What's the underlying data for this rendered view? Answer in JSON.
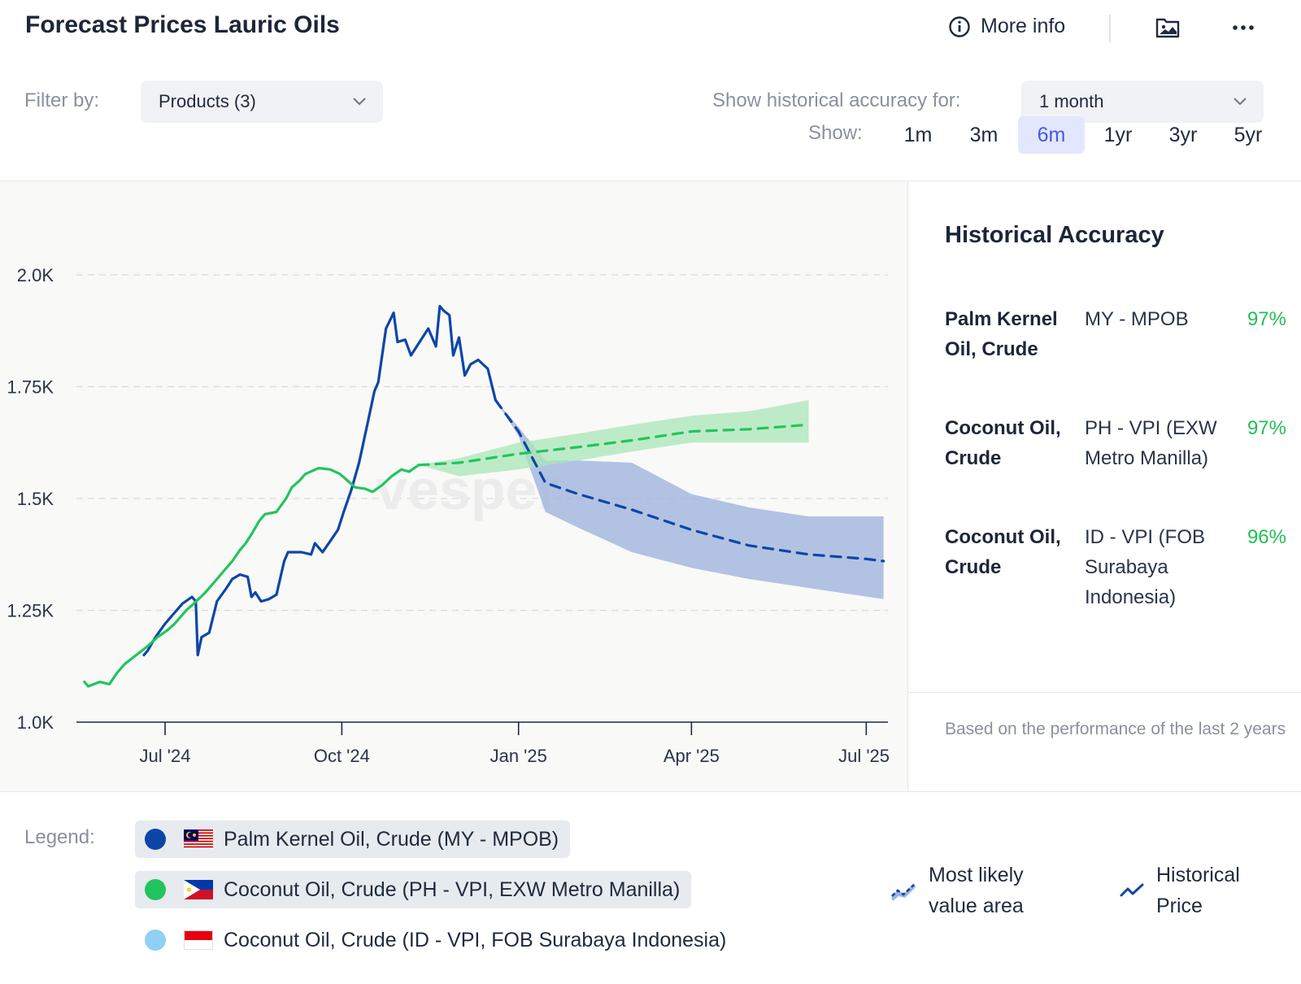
{
  "header": {
    "title": "Forecast Prices Lauric Oils",
    "more_info": "More info",
    "info_icon": "info-circle-icon",
    "image_icon": "image-download-icon",
    "menu_icon": "more-dots-icon"
  },
  "filters": {
    "filter_label": "Filter by:",
    "products_value": "Products (3)",
    "accuracy_label": "Show historical accuracy for:",
    "accuracy_value": "1 month",
    "show_label": "Show:",
    "ranges": [
      "1m",
      "3m",
      "6m",
      "1yr",
      "3yr",
      "5yr"
    ],
    "active_range": "6m"
  },
  "chart_data": {
    "type": "line",
    "y_ticks": [
      "1.0K",
      "1.25K",
      "1.5K",
      "1.75K",
      "2.0K"
    ],
    "x_ticks": [
      "Jul '24",
      "Oct '24",
      "Jan '25",
      "Apr '25",
      "Jul '25"
    ],
    "ylim": [
      1000,
      2000
    ],
    "xlim": [
      "2024-05-15",
      "2025-07-15"
    ],
    "grid": true,
    "watermark": "vesper",
    "series": [
      {
        "color": "#0d46a8",
        "historical": [
          [
            "2024-06-20",
            1150
          ],
          [
            "2024-06-22",
            1160
          ],
          [
            "2024-06-26",
            1190
          ],
          [
            "2024-07-01",
            1220
          ],
          [
            "2024-07-05",
            1240
          ],
          [
            "2024-07-10",
            1265
          ],
          [
            "2024-07-15",
            1280
          ],
          [
            "2024-07-17",
            1270
          ],
          [
            "2024-07-18",
            1150
          ],
          [
            "2024-07-20",
            1190
          ],
          [
            "2024-07-24",
            1200
          ],
          [
            "2024-07-28",
            1270
          ],
          [
            "2024-08-02",
            1300
          ],
          [
            "2024-08-05",
            1320
          ],
          [
            "2024-08-09",
            1330
          ],
          [
            "2024-08-13",
            1325
          ],
          [
            "2024-08-15",
            1280
          ],
          [
            "2024-08-17",
            1290
          ],
          [
            "2024-08-20",
            1270
          ],
          [
            "2024-08-24",
            1275
          ],
          [
            "2024-08-28",
            1285
          ],
          [
            "2024-09-01",
            1360
          ],
          [
            "2024-09-03",
            1380
          ],
          [
            "2024-09-10",
            1380
          ],
          [
            "2024-09-15",
            1375
          ],
          [
            "2024-09-17",
            1400
          ],
          [
            "2024-09-21",
            1380
          ],
          [
            "2024-09-25",
            1405
          ],
          [
            "2024-09-29",
            1430
          ],
          [
            "2024-10-02",
            1470
          ],
          [
            "2024-10-06",
            1520
          ],
          [
            "2024-10-10",
            1580
          ],
          [
            "2024-10-14",
            1660
          ],
          [
            "2024-10-18",
            1740
          ],
          [
            "2024-10-20",
            1760
          ],
          [
            "2024-10-24",
            1880
          ],
          [
            "2024-10-28",
            1915
          ],
          [
            "2024-10-30",
            1850
          ],
          [
            "2024-11-03",
            1855
          ],
          [
            "2024-11-06",
            1820
          ],
          [
            "2024-11-09",
            1840
          ],
          [
            "2024-11-12",
            1860
          ],
          [
            "2024-11-15",
            1880
          ],
          [
            "2024-11-19",
            1840
          ],
          [
            "2024-11-21",
            1930
          ],
          [
            "2024-11-23",
            1920
          ],
          [
            "2024-11-26",
            1910
          ],
          [
            "2024-11-28",
            1820
          ],
          [
            "2024-12-01",
            1860
          ],
          [
            "2024-12-04",
            1775
          ],
          [
            "2024-12-07",
            1800
          ],
          [
            "2024-12-11",
            1810
          ],
          [
            "2024-12-16",
            1790
          ],
          [
            "2024-12-20",
            1720
          ]
        ],
        "forecast": [
          [
            "2024-12-20",
            1720
          ],
          [
            "2025-01-01",
            1650
          ],
          [
            "2025-01-15",
            1535
          ],
          [
            "2025-02-01",
            1510
          ],
          [
            "2025-03-01",
            1475
          ],
          [
            "2025-04-01",
            1430
          ],
          [
            "2025-05-01",
            1395
          ],
          [
            "2025-06-01",
            1375
          ],
          [
            "2025-07-01",
            1365
          ],
          [
            "2025-07-10",
            1360
          ]
        ],
        "band": [
          [
            "2024-12-20",
            1720,
            1720
          ],
          [
            "2025-01-01",
            1640,
            1660
          ],
          [
            "2025-01-15",
            1470,
            1585
          ],
          [
            "2025-02-01",
            1435,
            1585
          ],
          [
            "2025-03-01",
            1380,
            1580
          ],
          [
            "2025-04-01",
            1345,
            1510
          ],
          [
            "2025-05-01",
            1320,
            1480
          ],
          [
            "2025-06-01",
            1300,
            1460
          ],
          [
            "2025-07-10",
            1275,
            1460
          ]
        ]
      },
      {
        "color": "#22c45e",
        "historical": [
          [
            "2024-05-20",
            1090
          ],
          [
            "2024-05-22",
            1080
          ],
          [
            "2024-05-28",
            1090
          ],
          [
            "2024-06-02",
            1085
          ],
          [
            "2024-06-06",
            1110
          ],
          [
            "2024-06-10",
            1130
          ],
          [
            "2024-06-16",
            1150
          ],
          [
            "2024-06-22",
            1170
          ],
          [
            "2024-06-27",
            1190
          ],
          [
            "2024-07-02",
            1205
          ],
          [
            "2024-07-06",
            1220
          ],
          [
            "2024-07-12",
            1250
          ],
          [
            "2024-07-16",
            1265
          ],
          [
            "2024-07-22",
            1290
          ],
          [
            "2024-07-26",
            1310
          ],
          [
            "2024-08-01",
            1340
          ],
          [
            "2024-08-05",
            1360
          ],
          [
            "2024-08-09",
            1385
          ],
          [
            "2024-08-12",
            1400
          ],
          [
            "2024-08-15",
            1420
          ],
          [
            "2024-08-19",
            1450
          ],
          [
            "2024-08-22",
            1465
          ],
          [
            "2024-08-28",
            1470
          ],
          [
            "2024-09-02",
            1500
          ],
          [
            "2024-09-05",
            1525
          ],
          [
            "2024-09-09",
            1540
          ],
          [
            "2024-09-12",
            1555
          ],
          [
            "2024-09-19",
            1568
          ],
          [
            "2024-09-25",
            1565
          ],
          [
            "2024-09-30",
            1555
          ],
          [
            "2024-10-04",
            1540
          ],
          [
            "2024-10-08",
            1525
          ],
          [
            "2024-10-13",
            1522
          ],
          [
            "2024-10-17",
            1515
          ],
          [
            "2024-10-22",
            1530
          ],
          [
            "2024-10-27",
            1550
          ],
          [
            "2024-11-01",
            1565
          ],
          [
            "2024-11-05",
            1560
          ],
          [
            "2024-11-10",
            1575
          ]
        ],
        "forecast": [
          [
            "2024-11-10",
            1575
          ],
          [
            "2024-12-01",
            1580
          ],
          [
            "2025-01-01",
            1600
          ],
          [
            "2025-02-01",
            1615
          ],
          [
            "2025-03-01",
            1630
          ],
          [
            "2025-04-01",
            1650
          ],
          [
            "2025-05-01",
            1655
          ],
          [
            "2025-06-01",
            1665
          ]
        ],
        "band": [
          [
            "2024-11-10",
            1575,
            1575
          ],
          [
            "2024-12-01",
            1550,
            1590
          ],
          [
            "2025-01-01",
            1565,
            1625
          ],
          [
            "2025-02-01",
            1585,
            1645
          ],
          [
            "2025-03-01",
            1605,
            1665
          ],
          [
            "2025-04-01",
            1625,
            1685
          ],
          [
            "2025-05-01",
            1625,
            1695
          ],
          [
            "2025-06-01",
            1625,
            1720
          ]
        ]
      }
    ]
  },
  "accuracy_panel": {
    "title": "Historical Accuracy",
    "rows": [
      {
        "product": "Palm Kernel Oil, Crude",
        "source": "MY - MPOB",
        "pct": "97%"
      },
      {
        "product": "Coconut Oil, Crude",
        "source": "PH - VPI (EXW Metro Manilla)",
        "pct": "97%"
      },
      {
        "product": "Coconut Oil, Crude",
        "source": "ID - VPI (FOB Surabaya Indonesia)",
        "pct": "96%"
      }
    ],
    "footnote": "Based on the performance of the last 2 years"
  },
  "legend": {
    "label": "Legend:",
    "items": [
      {
        "label": "Palm Kernel Oil, Crude (MY - MPOB)",
        "color": "#0d46a8",
        "active": true
      },
      {
        "label": "Coconut Oil, Crude (PH - VPI, EXW Metro Manilla)",
        "color": "#22c45e",
        "active": true
      },
      {
        "label": "Coconut Oil, Crude (ID - VPI, FOB Surabaya Indonesia)",
        "color": "#8fd0f5",
        "active": false
      }
    ],
    "key_area": "Most likely value area",
    "key_price": "Historical Price"
  }
}
